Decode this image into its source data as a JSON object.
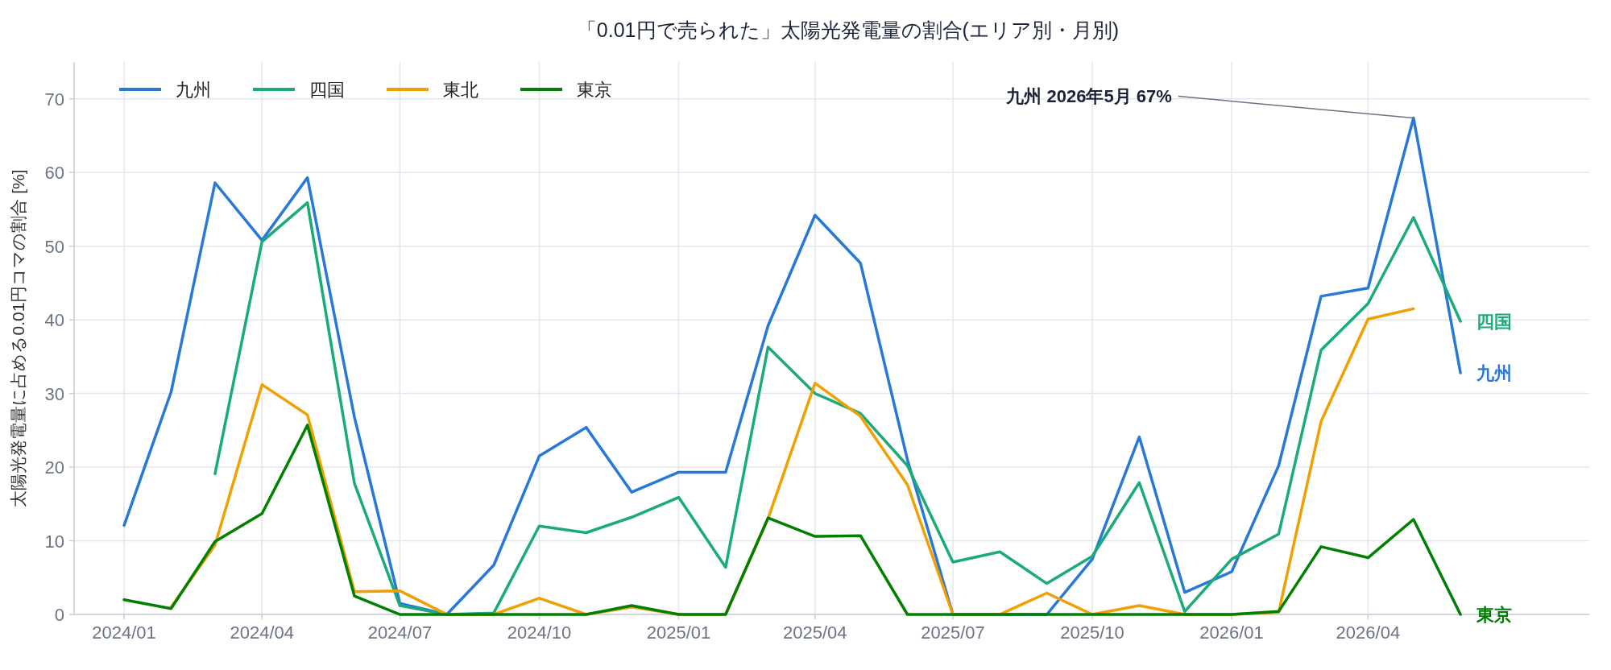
{
  "chart_data": {
    "type": "line",
    "title": "「0.01円で売られた」太陽光発電量の割合(エリア別・月別)",
    "ylabel": "太陽光発電量に占める0.01円コマの割合 [%]",
    "x": [
      "2024-01",
      "2024-02",
      "2024-03",
      "2024-04",
      "2024-05",
      "2024-06",
      "2024-07",
      "2024-08",
      "2024-09",
      "2024-10",
      "2024-11",
      "2024-12",
      "2025-01",
      "2025-02",
      "2025-03",
      "2025-04",
      "2025-05",
      "2025-06",
      "2025-07",
      "2025-08",
      "2025-09",
      "2025-10",
      "2025-11",
      "2025-12",
      "2026-01",
      "2026-02",
      "2026-03",
      "2026-04",
      "2026-05",
      "2026-06"
    ],
    "series": [
      {
        "name": "九州",
        "color": "#2878d8",
        "values": [
          12.1,
          30.2,
          58.6,
          50.8,
          59.3,
          26.8,
          1.5,
          0,
          6.7,
          21.5,
          25.4,
          16.6,
          19.3,
          19.3,
          39.2,
          54.2,
          47.7,
          21,
          0,
          0,
          0,
          7.5,
          24.1,
          3.0,
          5.8,
          20.2,
          43.2,
          44.3,
          67.4,
          32.8
        ]
      },
      {
        "name": "四国",
        "color": "#1aab78",
        "values": [
          null,
          null,
          19.1,
          50.6,
          55.9,
          17.8,
          1.2,
          0,
          0.2,
          12.0,
          11.1,
          13.2,
          15.9,
          6.4,
          36.3,
          30.0,
          27.3,
          20.2,
          7.1,
          8.5,
          4.2,
          7.9,
          17.9,
          0.4,
          7.5,
          10.9,
          35.9,
          42.2,
          53.9,
          39.8
        ]
      },
      {
        "name": "東北",
        "color": "#f0a000",
        "values": [
          null,
          1.0,
          9.4,
          31.2,
          27.1,
          3.1,
          3.2,
          0,
          0,
          2.2,
          0,
          1.0,
          0,
          0,
          13.0,
          31.4,
          26.9,
          17.6,
          0,
          0,
          2.9,
          0,
          1.2,
          0,
          0,
          0.3,
          26.2,
          40.1,
          41.5,
          null
        ]
      },
      {
        "name": "東京",
        "color": "#008000",
        "values": [
          2.0,
          0.8,
          9.9,
          13.7,
          25.7,
          2.5,
          0,
          0,
          0,
          0,
          0,
          1.2,
          0,
          0,
          13.1,
          10.6,
          10.7,
          0,
          0,
          0,
          0,
          0,
          0,
          0,
          0,
          0.4,
          9.2,
          7.7,
          12.9,
          0
        ]
      }
    ],
    "xlim": [
      "2023-11-29",
      "2026-08-25"
    ],
    "xticks": [
      {
        "value": "2024-01",
        "label": "2024/01"
      },
      {
        "value": "2024-04",
        "label": "2024/04"
      },
      {
        "value": "2024-07",
        "label": "2024/07"
      },
      {
        "value": "2024-10",
        "label": "2024/10"
      },
      {
        "value": "2025-01",
        "label": "2025/01"
      },
      {
        "value": "2025-04",
        "label": "2025/04"
      },
      {
        "value": "2025-07",
        "label": "2025/07"
      },
      {
        "value": "2025-10",
        "label": "2025/10"
      },
      {
        "value": "2026-01",
        "label": "2026/01"
      },
      {
        "value": "2026-04",
        "label": "2026/04"
      }
    ],
    "ylim": [
      0,
      75
    ],
    "yticks": [
      0,
      10,
      20,
      30,
      40,
      50,
      60,
      70
    ],
    "grid": true,
    "legend": "top left",
    "annotations": [
      {
        "text": "九州 2026年5月 67%",
        "x": "2026-05",
        "y": 67.4
      }
    ]
  }
}
